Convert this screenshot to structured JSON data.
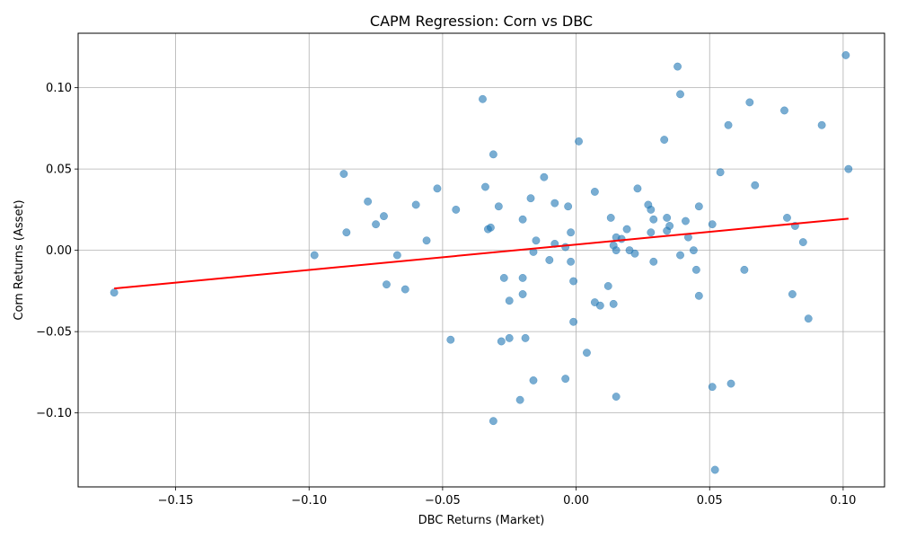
{
  "chart_data": {
    "type": "scatter",
    "title": "CAPM Regression: Corn vs DBC",
    "xlabel": "DBC Returns (Market)",
    "ylabel": "Corn Returns (Asset)",
    "xlim": [
      -0.1865,
      0.1155
    ],
    "ylim": [
      -0.1455,
      0.1335
    ],
    "grid": true,
    "x_ticks": [
      -0.15,
      -0.1,
      -0.05,
      0.0,
      0.05,
      0.1
    ],
    "x_tick_labels": [
      "−0.15",
      "−0.10",
      "−0.05",
      "0.00",
      "0.05",
      "0.10"
    ],
    "y_ticks": [
      -0.1,
      -0.05,
      0.0,
      0.05,
      0.1
    ],
    "y_tick_labels": [
      "−0.10",
      "−0.05",
      "0.00",
      "0.05",
      "0.10"
    ],
    "colors": {
      "points": "#1f77b4",
      "regression": "#ff0000",
      "grid": "#b0b0b0"
    },
    "points": [
      [
        -0.173,
        -0.026
      ],
      [
        -0.098,
        -0.003
      ],
      [
        -0.087,
        0.047
      ],
      [
        -0.086,
        0.011
      ],
      [
        -0.078,
        0.03
      ],
      [
        -0.075,
        0.016
      ],
      [
        -0.072,
        0.021
      ],
      [
        -0.071,
        -0.021
      ],
      [
        -0.067,
        -0.003
      ],
      [
        -0.064,
        -0.024
      ],
      [
        -0.06,
        0.028
      ],
      [
        -0.056,
        0.006
      ],
      [
        -0.052,
        0.038
      ],
      [
        -0.047,
        -0.055
      ],
      [
        -0.045,
        0.025
      ],
      [
        -0.035,
        0.093
      ],
      [
        -0.034,
        0.039
      ],
      [
        -0.033,
        0.013
      ],
      [
        -0.032,
        0.014
      ],
      [
        -0.031,
        0.059
      ],
      [
        -0.031,
        -0.105
      ],
      [
        -0.029,
        0.027
      ],
      [
        -0.028,
        -0.056
      ],
      [
        -0.027,
        -0.017
      ],
      [
        -0.025,
        -0.054
      ],
      [
        -0.025,
        -0.031
      ],
      [
        -0.021,
        -0.092
      ],
      [
        -0.02,
        0.019
      ],
      [
        -0.02,
        -0.017
      ],
      [
        -0.02,
        -0.027
      ],
      [
        -0.019,
        -0.054
      ],
      [
        -0.017,
        0.032
      ],
      [
        -0.016,
        -0.001
      ],
      [
        -0.016,
        -0.08
      ],
      [
        -0.015,
        0.006
      ],
      [
        -0.012,
        0.045
      ],
      [
        -0.01,
        -0.006
      ],
      [
        -0.008,
        0.004
      ],
      [
        -0.008,
        0.029
      ],
      [
        -0.004,
        -0.079
      ],
      [
        -0.004,
        0.002
      ],
      [
        -0.003,
        0.027
      ],
      [
        -0.002,
        0.011
      ],
      [
        -0.002,
        -0.007
      ],
      [
        -0.001,
        -0.019
      ],
      [
        -0.001,
        -0.044
      ],
      [
        0.001,
        0.067
      ],
      [
        0.004,
        -0.063
      ],
      [
        0.007,
        0.036
      ],
      [
        0.007,
        -0.032
      ],
      [
        0.009,
        -0.034
      ],
      [
        0.012,
        -0.022
      ],
      [
        0.013,
        0.02
      ],
      [
        0.014,
        -0.033
      ],
      [
        0.014,
        0.003
      ],
      [
        0.015,
        0.008
      ],
      [
        0.015,
        0.0
      ],
      [
        0.015,
        -0.09
      ],
      [
        0.017,
        0.007
      ],
      [
        0.019,
        0.013
      ],
      [
        0.02,
        0.0
      ],
      [
        0.022,
        -0.002
      ],
      [
        0.023,
        0.038
      ],
      [
        0.027,
        0.028
      ],
      [
        0.028,
        0.025
      ],
      [
        0.028,
        0.011
      ],
      [
        0.029,
        0.019
      ],
      [
        0.029,
        -0.007
      ],
      [
        0.033,
        0.068
      ],
      [
        0.034,
        0.012
      ],
      [
        0.034,
        0.02
      ],
      [
        0.035,
        0.015
      ],
      [
        0.038,
        0.113
      ],
      [
        0.039,
        0.096
      ],
      [
        0.039,
        -0.003
      ],
      [
        0.041,
        0.018
      ],
      [
        0.042,
        0.008
      ],
      [
        0.044,
        0.0
      ],
      [
        0.045,
        -0.012
      ],
      [
        0.046,
        0.027
      ],
      [
        0.046,
        -0.028
      ],
      [
        0.051,
        -0.084
      ],
      [
        0.051,
        0.016
      ],
      [
        0.052,
        -0.135
      ],
      [
        0.054,
        0.048
      ],
      [
        0.057,
        0.077
      ],
      [
        0.058,
        -0.082
      ],
      [
        0.063,
        -0.012
      ],
      [
        0.065,
        0.091
      ],
      [
        0.067,
        0.04
      ],
      [
        0.078,
        0.086
      ],
      [
        0.079,
        0.02
      ],
      [
        0.081,
        -0.027
      ],
      [
        0.082,
        0.015
      ],
      [
        0.085,
        0.005
      ],
      [
        0.087,
        -0.042
      ],
      [
        0.092,
        0.077
      ],
      [
        0.101,
        0.12
      ],
      [
        0.102,
        0.05
      ]
    ],
    "regression_line": {
      "x": [
        -0.173,
        0.102
      ],
      "y": [
        -0.0235,
        0.0195
      ]
    }
  }
}
